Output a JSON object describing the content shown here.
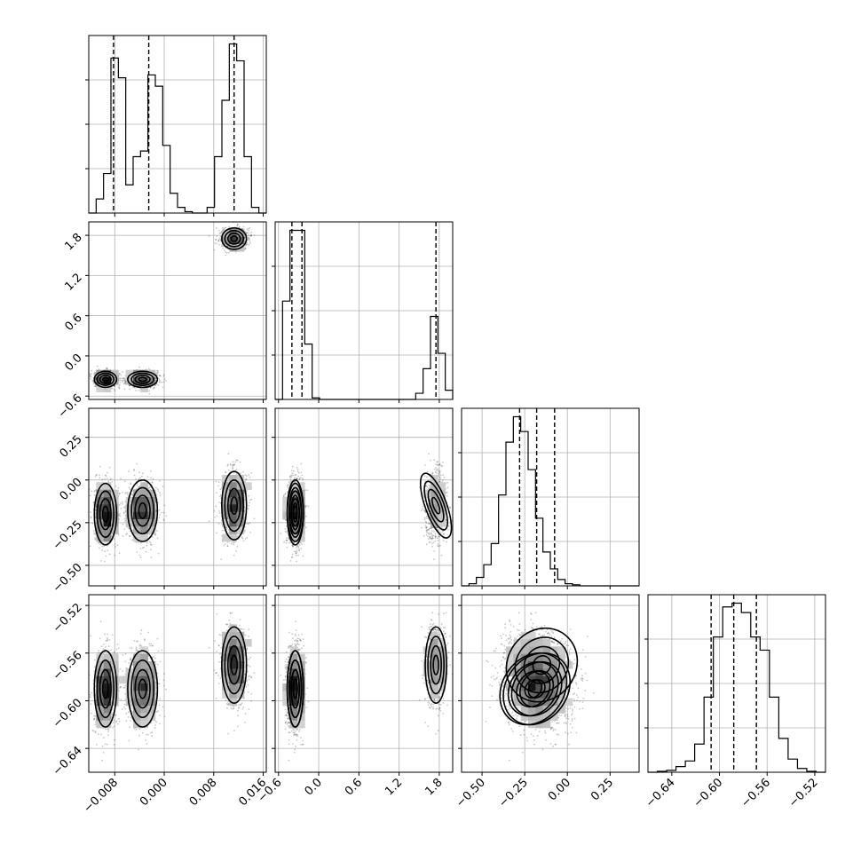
{
  "chart_data": {
    "type": "corner",
    "title": "",
    "parameters": [
      {
        "index": 0,
        "range": [
          -0.0122,
          0.0165
        ],
        "ticks": [
          -0.008,
          0.0,
          0.008,
          0.016
        ],
        "tick_labels": [
          "−0.008",
          "0.000",
          "0.008",
          "0.016"
        ],
        "quantiles": [
          -0.0082,
          -0.0025,
          0.0113
        ],
        "hist_counts": [
          0,
          5,
          14,
          55,
          48,
          10,
          20,
          22,
          49,
          45,
          24,
          7,
          2,
          0.5,
          0,
          0,
          2,
          20,
          40,
          60,
          54,
          20,
          2,
          0
        ]
      },
      {
        "index": 1,
        "range": [
          -0.65,
          2.0
        ],
        "ticks": [
          -0.6,
          0.0,
          0.6,
          1.2,
          1.8
        ],
        "tick_labels": [
          "−0.6",
          "0.0",
          "0.6",
          "1.2",
          "1.8"
        ],
        "quantiles": [
          -0.4,
          -0.25,
          1.75
        ],
        "hist_counts": [
          0,
          32,
          55,
          55,
          18,
          0.5,
          0,
          0,
          0,
          0,
          0,
          0,
          0,
          0,
          0,
          0,
          0,
          0,
          0,
          2,
          10,
          27,
          15,
          3
        ]
      },
      {
        "index": 2,
        "range": [
          -0.62,
          0.42
        ],
        "ticks": [
          -0.5,
          -0.25,
          0.0,
          0.25
        ],
        "tick_labels": [
          "−0.50",
          "−0.25",
          "0.00",
          "0.25"
        ],
        "quantiles": [
          -0.28,
          -0.18,
          -0.075
        ],
        "hist_counts": [
          0,
          1,
          4,
          10,
          20,
          43,
          68,
          80,
          73,
          55,
          32,
          16,
          8,
          3,
          1,
          0.5,
          0,
          0,
          0,
          0,
          0,
          0,
          0,
          0
        ]
      },
      {
        "index": 3,
        "range": [
          -0.66,
          -0.511
        ],
        "ticks": [
          -0.64,
          -0.6,
          -0.56,
          -0.52
        ],
        "tick_labels": [
          "−0.64",
          "−0.60",
          "−0.56",
          "−0.52"
        ],
        "quantiles": [
          -0.607,
          -0.588,
          -0.569
        ],
        "hist_counts": [
          0,
          0.5,
          1,
          3,
          6,
          15,
          40,
          72,
          88,
          90,
          85,
          72,
          65,
          40,
          18,
          7,
          2,
          0.5,
          0
        ]
      }
    ],
    "modes": [
      {
        "mean": [
          -0.0095,
          -0.35,
          -0.2,
          -0.59
        ],
        "sd": [
          0.0009,
          0.06,
          0.09,
          0.016
        ],
        "weight": 0.33
      },
      {
        "mean": [
          -0.0035,
          -0.35,
          -0.18,
          -0.59
        ],
        "sd": [
          0.0012,
          0.06,
          0.09,
          0.016
        ],
        "weight": 0.34
      },
      {
        "mean": [
          0.0113,
          1.75,
          -0.15,
          -0.57
        ],
        "sd": [
          0.001,
          0.08,
          0.1,
          0.016
        ],
        "weight": 0.33
      }
    ],
    "grid": true
  }
}
